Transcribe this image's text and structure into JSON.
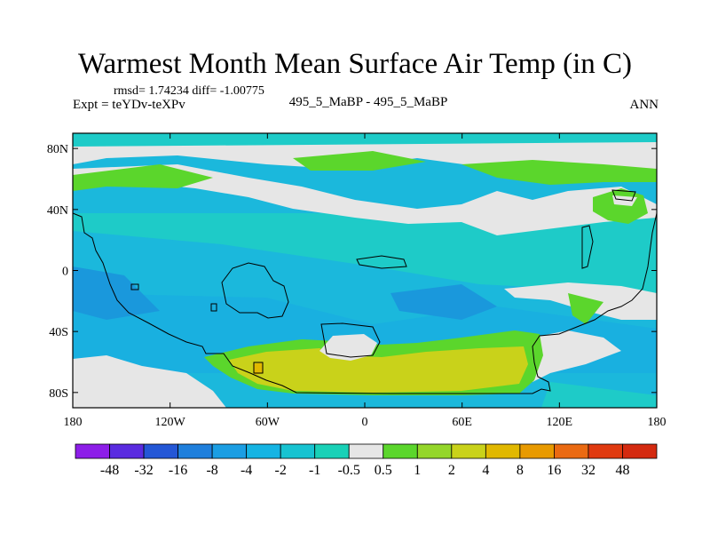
{
  "title": "Warmest Month Mean Surface Air Temp (in C)",
  "stats": "rmsd= 1.74234 diff= -1.00775",
  "left_label": "Expt = teYDv-teXPv",
  "center_label": "495_5_MaBP - 495_5_MaBP",
  "right_label": "ANN",
  "chart_data": {
    "type": "heatmap",
    "x_ticks": [
      "180",
      "120W",
      "60W",
      "0",
      "60E",
      "120E",
      "180"
    ],
    "y_ticks": [
      "80N",
      "40N",
      "0",
      "40S",
      "80S"
    ],
    "lon_range": [
      -180,
      180
    ],
    "lat_range": [
      -90,
      90
    ],
    "colorbar": {
      "labels": [
        "-48",
        "-32",
        "-16",
        "-8",
        "-4",
        "-2",
        "-1",
        "-0.5",
        "0.5",
        "1",
        "2",
        "4",
        "8",
        "16",
        "32",
        "48"
      ],
      "colors": [
        "#8d1ee8",
        "#5a2be0",
        "#2457d6",
        "#1f7fdc",
        "#1b9ee3",
        "#15b4e3",
        "#17c3d1",
        "#19d1b7",
        "#e6e6e6",
        "#5bd62c",
        "#94d62a",
        "#c9d21a",
        "#e1b800",
        "#e89a00",
        "#ea6a12",
        "#e03a10",
        "#d42a10"
      ]
    }
  }
}
